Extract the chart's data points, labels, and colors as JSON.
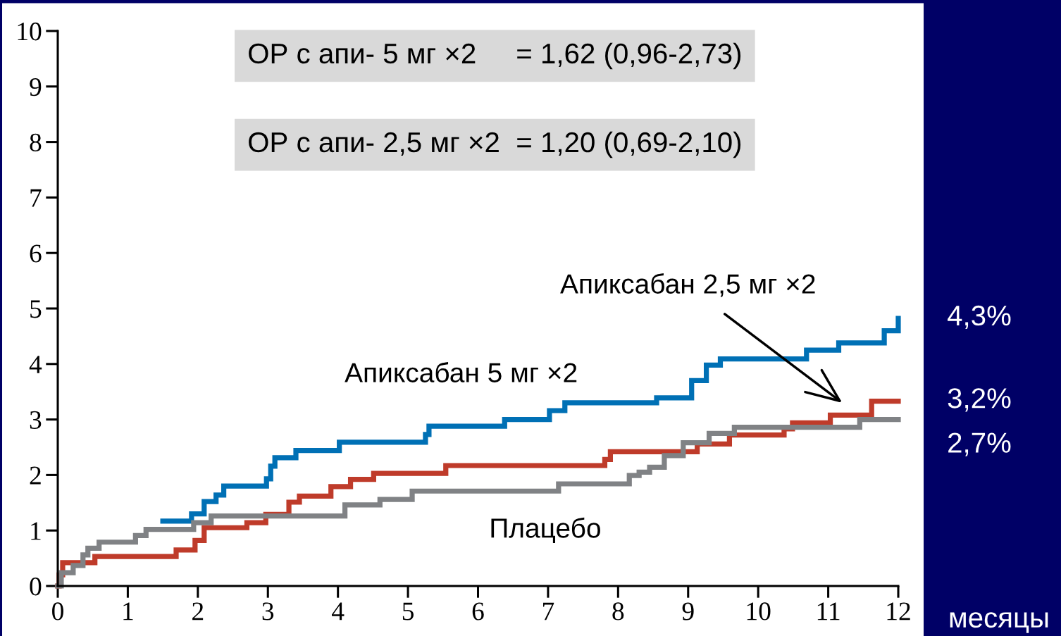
{
  "chart_data": {
    "type": "step",
    "xlabel": "месяцы",
    "xlim": [
      0,
      12
    ],
    "ylim": [
      0,
      10
    ],
    "xticks": [
      0,
      1,
      2,
      3,
      4,
      5,
      6,
      7,
      8,
      9,
      10,
      11,
      12
    ],
    "yticks": [
      0,
      1,
      2,
      3,
      4,
      5,
      6,
      7,
      8,
      9,
      10
    ],
    "grid": false,
    "legend": false,
    "marker": "none",
    "line_style": "solid",
    "series": [
      {
        "name": "Апиксабан 5 мг ×2",
        "color": "#0070b5",
        "x": [
          1.5,
          1.91,
          2.09,
          2.26,
          2.37,
          2.98,
          3.04,
          3.1,
          3.4,
          4.02,
          5.25,
          5.3,
          6.38,
          7.02,
          7.24,
          8.55,
          9.05,
          9.26,
          9.46,
          10.69,
          11.15,
          11.8,
          12.0
        ],
        "values": [
          1.17,
          1.3,
          1.52,
          1.64,
          1.8,
          1.93,
          2.16,
          2.31,
          2.44,
          2.59,
          2.73,
          2.88,
          3.0,
          3.16,
          3.3,
          3.39,
          3.7,
          3.98,
          4.09,
          4.25,
          4.38,
          4.6,
          4.82
        ]
      },
      {
        "name": "Апиксабан 2,5 мг ×2",
        "color": "#bf3b2a",
        "x": [
          0,
          0.02,
          0.07,
          0.53,
          1.69,
          1.96,
          2.09,
          2.7,
          2.97,
          3.3,
          3.45,
          3.9,
          4.18,
          4.51,
          5.54,
          7.81,
          7.89,
          9.13,
          9.59,
          10.37,
          10.49,
          11.03,
          11.62,
          12.0
        ],
        "values": [
          0,
          0.2,
          0.42,
          0.53,
          0.65,
          0.82,
          1.05,
          1.14,
          1.29,
          1.51,
          1.62,
          1.79,
          1.92,
          2.03,
          2.17,
          2.28,
          2.42,
          2.56,
          2.72,
          2.83,
          2.94,
          3.08,
          3.33,
          3.33
        ]
      },
      {
        "name": "Плацебо",
        "color": "#808285",
        "x": [
          0,
          0.05,
          0.22,
          0.36,
          0.43,
          0.59,
          1.11,
          1.26,
          1.94,
          2.19,
          4.1,
          4.6,
          5.06,
          7.15,
          8.16,
          8.3,
          8.45,
          8.66,
          8.93,
          9.3,
          9.66,
          11.45,
          12.0
        ],
        "values": [
          0,
          0.24,
          0.37,
          0.56,
          0.68,
          0.79,
          0.91,
          1.02,
          1.14,
          1.26,
          1.46,
          1.56,
          1.71,
          1.84,
          1.99,
          2.05,
          2.14,
          2.35,
          2.58,
          2.75,
          2.86,
          3.0,
          3.0
        ]
      }
    ],
    "annotations": [
      "ОР с апи- 5 мг ×2     = 1,62 (0,96-2,73)",
      "ОР с апи- 2,5 мг ×2  = 1,20 (0,69-2,10)",
      "4,3%",
      "3,2%",
      "2,7%"
    ]
  }
}
